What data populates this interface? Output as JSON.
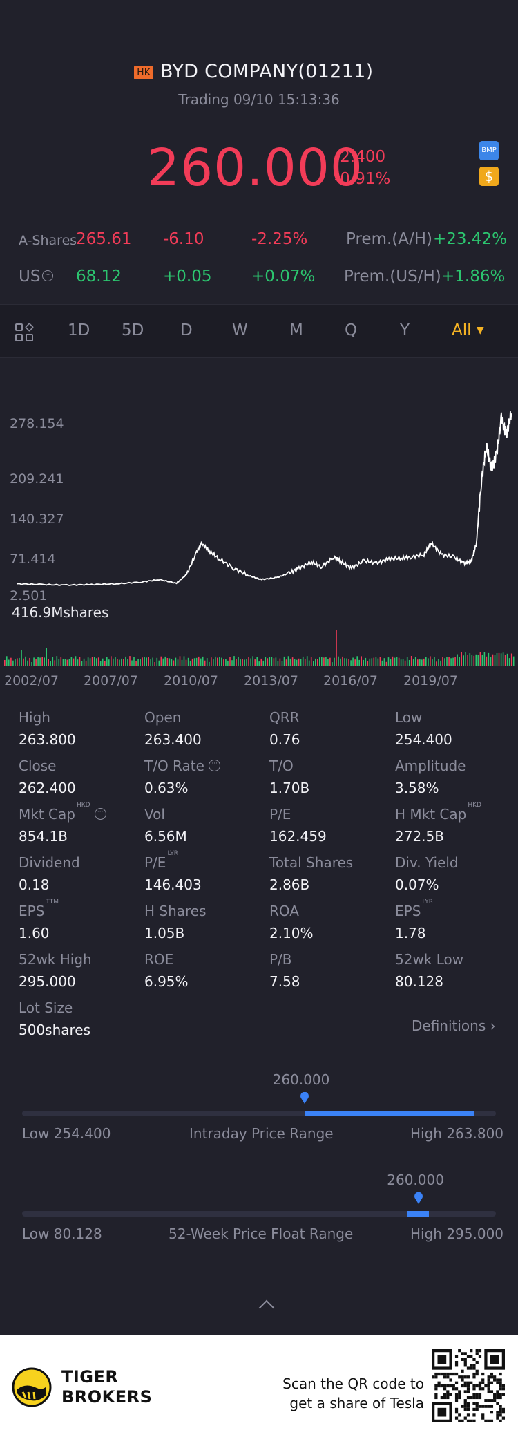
{
  "header": {
    "market_badge": "HK",
    "title": "BYD COMPANY(01211)",
    "status": "Trading 09/10 15:13:36",
    "price": "260.000",
    "change": "-2.400",
    "change_pct": "-0.91%",
    "badge_bmp": "BMP",
    "badge_dollar": "$"
  },
  "quotes": {
    "a_shares": {
      "label": "A-Shares",
      "price": "265.61",
      "change": "-6.10",
      "change_pct": "-2.25%",
      "prem_label": "Prem.(A/H)",
      "prem_value": "+23.42%"
    },
    "us": {
      "label": "US",
      "price": "68.12",
      "change": "+0.05",
      "change_pct": "+0.07%",
      "prem_label": "Prem.(US/H)",
      "prem_value": "+1.86%"
    }
  },
  "tabs": [
    {
      "label": "1D"
    },
    {
      "label": "5D"
    },
    {
      "label": "D"
    },
    {
      "label": "W"
    },
    {
      "label": "M"
    },
    {
      "label": "Q"
    },
    {
      "label": "Y"
    },
    {
      "label": "All"
    }
  ],
  "active_tab": "All",
  "chart_data": {
    "type": "line",
    "y_ticks": [
      "278.154",
      "209.241",
      "140.327",
      "71.414",
      "2.501"
    ],
    "ylim": [
      2.501,
      278.154
    ],
    "x_ticks": [
      "2002/07",
      "2007/07",
      "2010/07",
      "2013/07",
      "2016/07",
      "2019/07"
    ],
    "volume_label": "416.9Mshares",
    "series": [
      {
        "values": [
          [
            2002.5,
            5
          ],
          [
            2003.5,
            4
          ],
          [
            2004.5,
            3
          ],
          [
            2005.5,
            4
          ],
          [
            2006.5,
            5
          ],
          [
            2007.5,
            8
          ],
          [
            2008.2,
            12
          ],
          [
            2008.9,
            6
          ],
          [
            2009.3,
            20
          ],
          [
            2009.7,
            55
          ],
          [
            2009.9,
            70
          ],
          [
            2010.2,
            58
          ],
          [
            2010.6,
            45
          ],
          [
            2011.2,
            30
          ],
          [
            2011.8,
            18
          ],
          [
            2012.3,
            12
          ],
          [
            2012.9,
            15
          ],
          [
            2013.4,
            22
          ],
          [
            2013.8,
            30
          ],
          [
            2014.3,
            40
          ],
          [
            2014.7,
            32
          ],
          [
            2015.2,
            48
          ],
          [
            2015.5,
            40
          ],
          [
            2015.9,
            30
          ],
          [
            2016.4,
            42
          ],
          [
            2016.9,
            38
          ],
          [
            2017.4,
            45
          ],
          [
            2017.9,
            46
          ],
          [
            2018.3,
            48
          ],
          [
            2018.8,
            52
          ],
          [
            2019.1,
            70
          ],
          [
            2019.5,
            52
          ],
          [
            2020.0,
            48
          ],
          [
            2020.4,
            38
          ],
          [
            2020.7,
            42
          ],
          [
            2020.9,
            70
          ],
          [
            2021.1,
            170
          ],
          [
            2021.3,
            225
          ],
          [
            2021.5,
            190
          ],
          [
            2021.7,
            210
          ],
          [
            2021.9,
            270
          ],
          [
            2022.1,
            245
          ],
          [
            2022.3,
            278
          ]
        ]
      }
    ]
  },
  "stats": [
    {
      "key": "High",
      "value": "263.800"
    },
    {
      "key": "Open",
      "value": "263.400"
    },
    {
      "key": "QRR",
      "value": "0.76"
    },
    {
      "key": "Low",
      "value": "254.400"
    },
    {
      "key": "Close",
      "value": "262.400"
    },
    {
      "key": "T/O Rate",
      "value": "0.63%"
    },
    {
      "key": "T/O",
      "value": "1.70B"
    },
    {
      "key": "Amplitude",
      "value": "3.58%"
    },
    {
      "key": "Mkt Cap",
      "sup": "HKD",
      "value": "854.1B"
    },
    {
      "key": "Vol",
      "value": "6.56M"
    },
    {
      "key": "P/E",
      "value": "162.459"
    },
    {
      "key": "H Mkt Cap",
      "sup": "HKD",
      "value": "272.5B"
    },
    {
      "key": "Dividend",
      "value": "0.18"
    },
    {
      "key": "P/E",
      "sup": "LYR",
      "value": "146.403"
    },
    {
      "key": "Total Shares",
      "value": "2.86B"
    },
    {
      "key": "Div. Yield",
      "value": "0.07%"
    },
    {
      "key": "EPS",
      "sup": "TTM",
      "value": "1.60"
    },
    {
      "key": "H Shares",
      "value": "1.05B"
    },
    {
      "key": "ROA",
      "value": "2.10%"
    },
    {
      "key": "EPS",
      "sup": "LYR",
      "value": "1.78"
    },
    {
      "key": "52wk High",
      "value": "295.000"
    },
    {
      "key": "ROE",
      "value": "6.95%"
    },
    {
      "key": "P/B",
      "value": "7.58"
    },
    {
      "key": "52wk Low",
      "value": "80.128"
    },
    {
      "key": "Lot Size",
      "value": "500shares"
    }
  ],
  "definitions_label": "Definitions",
  "intraday_range": {
    "current": "260.000",
    "low_label": "Low 254.400",
    "title": "Intraday Price Range",
    "high_label": "High 263.800",
    "low": 254.4,
    "high": 263.8,
    "price": 260.0
  },
  "week52_range": {
    "current": "260.000",
    "low_label": "Low 80.128",
    "title": "52-Week Price Float Range",
    "high_label": "High 295.000",
    "low": 80.128,
    "high": 295.0,
    "price": 260.0
  },
  "footer": {
    "brand_line1": "TIGER",
    "brand_line2": "BROKERS",
    "scan_line1": "Scan the QR code to",
    "scan_line2": "get a share of Tesla"
  },
  "colors": {
    "up": "#2cc56f",
    "down": "#f23c58",
    "accent": "#f5b324",
    "range": "#3b82f6"
  }
}
